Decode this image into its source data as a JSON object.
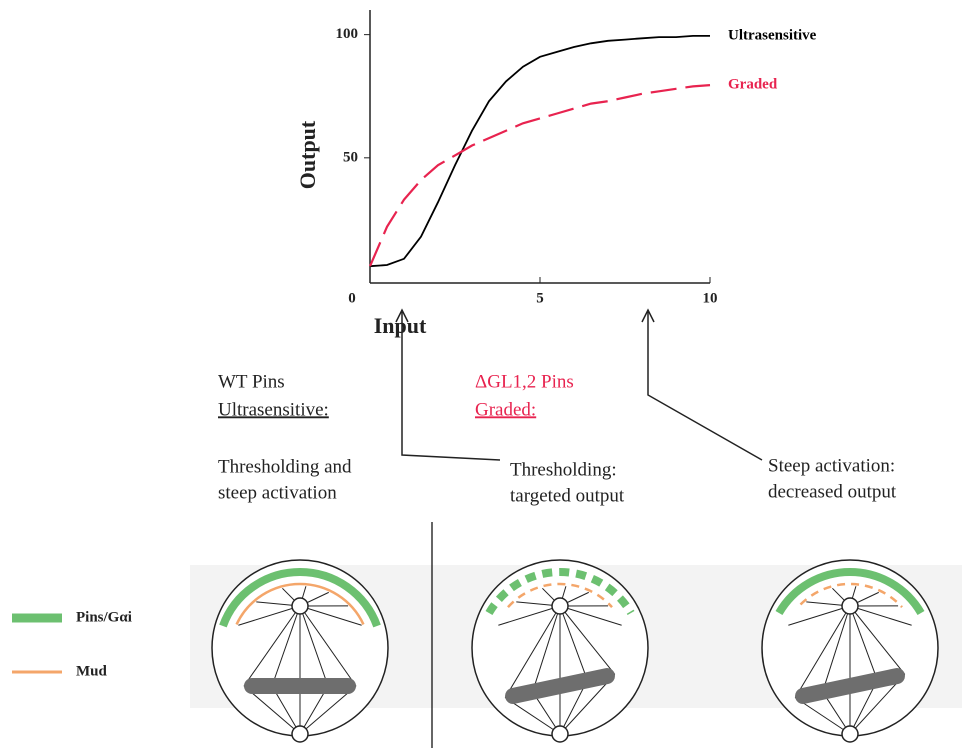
{
  "chart_data": {
    "type": "line",
    "x": [
      0,
      0.5,
      1,
      1.5,
      2,
      2.5,
      3,
      3.5,
      4,
      4.5,
      5,
      5.5,
      6,
      6.5,
      7,
      7.5,
      8,
      8.5,
      9,
      9.5,
      10
    ],
    "series": [
      {
        "name": "Ultrasensitive",
        "color": "#000000",
        "dash": false,
        "values": [
          6,
          6.5,
          9,
          18,
          32,
          47,
          61,
          73,
          81,
          87,
          91,
          93,
          95,
          96.5,
          97.5,
          98,
          98.5,
          99,
          99,
          99.5,
          99.5
        ]
      },
      {
        "name": "Graded",
        "color": "#e8234f",
        "dash": true,
        "values": [
          6,
          22,
          33,
          41,
          47,
          51,
          55,
          58,
          61,
          64,
          66,
          68,
          70,
          72,
          73,
          74.5,
          76,
          77,
          78,
          79,
          79.5
        ]
      }
    ],
    "xlabel": "Input",
    "ylabel": "Output",
    "xlim": [
      0,
      10
    ],
    "ylim": [
      0,
      110
    ],
    "xticks": [
      0,
      5,
      10
    ],
    "yticks": [
      50,
      100
    ]
  },
  "panels": [
    {
      "title": "WT Pins",
      "subtitle": "Ultrasensitive:",
      "color": "#222222",
      "text": [
        "Thresholding and",
        "steep activation"
      ]
    },
    {
      "title": "ΔGL1,2 Pins",
      "subtitle": "Graded:",
      "color": "#e8234f",
      "text": [
        "Thresholding:",
        "targeted output"
      ]
    },
    {
      "text": [
        "Steep activation:",
        "decreased output"
      ]
    }
  ],
  "legend": {
    "pins": "Pins/Gαi",
    "mud": "Mud"
  }
}
